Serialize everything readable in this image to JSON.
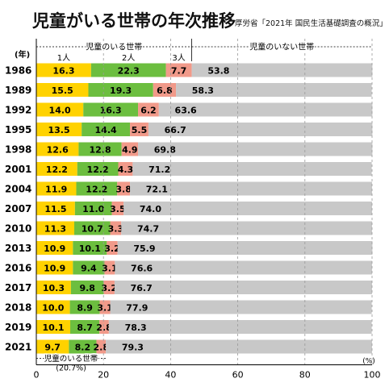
{
  "title": "児童がいる世帯の年次推移",
  "source": "厚労省「2021年 国民生活基礎調査の概況」",
  "chart_data": {
    "type": "bar",
    "orientation": "horizontal",
    "stacked": true,
    "year_axis_label": "(年)",
    "x_unit_label": "(%)",
    "xlim": [
      0,
      100
    ],
    "x_ticks": [
      0,
      20,
      40,
      60,
      80,
      100
    ],
    "categories": [
      "1986",
      "1989",
      "1992",
      "1995",
      "1998",
      "2001",
      "2004",
      "2007",
      "2010",
      "2013",
      "2016",
      "2017",
      "2018",
      "2019",
      "2021"
    ],
    "series": [
      {
        "name": "1人",
        "color": "#ffd200",
        "values": [
          16.3,
          15.5,
          14.0,
          13.5,
          12.6,
          12.2,
          11.9,
          11.5,
          11.3,
          10.9,
          10.9,
          10.3,
          10.0,
          10.1,
          9.7
        ]
      },
      {
        "name": "2人",
        "color": "#6cbe3f",
        "values": [
          22.3,
          19.3,
          16.3,
          14.4,
          12.8,
          12.2,
          12.2,
          11.0,
          10.7,
          10.1,
          9.4,
          9.8,
          8.9,
          8.7,
          8.2
        ]
      },
      {
        "name": "3人",
        "color": "#f19a8a",
        "values": [
          7.7,
          6.8,
          6.2,
          5.5,
          4.9,
          4.3,
          3.8,
          3.5,
          3.3,
          3.2,
          3.1,
          3.2,
          3.1,
          2.8,
          2.8
        ]
      },
      {
        "name": "児童のいない世帯",
        "color": "#c8c8c8",
        "values": [
          53.8,
          58.3,
          63.6,
          66.7,
          69.8,
          71.2,
          72.1,
          74.0,
          74.7,
          75.9,
          76.6,
          76.7,
          77.9,
          78.3,
          79.3
        ]
      }
    ],
    "group_labels": {
      "with_children": "児童のいる世帯",
      "without_children": "児童のいない世帯"
    },
    "annotation": {
      "label": "児童のいる世帯",
      "value": "(20.7%)"
    },
    "grid": "vertical-dashed",
    "colors": {
      "grid": "#999999",
      "axis": "#000000"
    }
  }
}
